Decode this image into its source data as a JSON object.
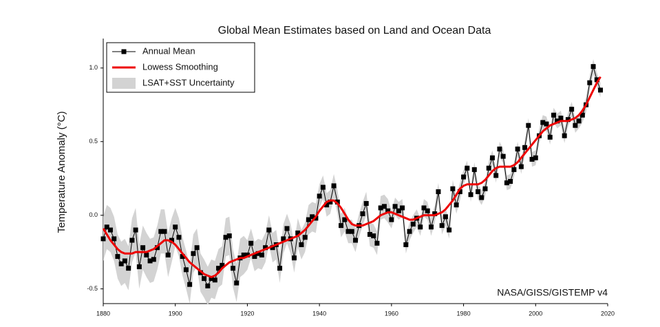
{
  "chart_data": {
    "type": "line",
    "title": "Global Mean Estimates based on Land and Ocean Data",
    "y_label": "Temperature Anomaly (°C)",
    "annotation": "NASA/GISS/GISTEMP v4",
    "x": [
      1880,
      1881,
      1882,
      1883,
      1884,
      1885,
      1886,
      1887,
      1888,
      1889,
      1890,
      1891,
      1892,
      1893,
      1894,
      1895,
      1896,
      1897,
      1898,
      1899,
      1900,
      1901,
      1902,
      1903,
      1904,
      1905,
      1906,
      1907,
      1908,
      1909,
      1910,
      1911,
      1912,
      1913,
      1914,
      1915,
      1916,
      1917,
      1918,
      1919,
      1920,
      1921,
      1922,
      1923,
      1924,
      1925,
      1926,
      1927,
      1928,
      1929,
      1930,
      1931,
      1932,
      1933,
      1934,
      1935,
      1936,
      1937,
      1938,
      1939,
      1940,
      1941,
      1942,
      1943,
      1944,
      1945,
      1946,
      1947,
      1948,
      1949,
      1950,
      1951,
      1952,
      1953,
      1954,
      1955,
      1956,
      1957,
      1958,
      1959,
      1960,
      1961,
      1962,
      1963,
      1964,
      1965,
      1966,
      1967,
      1968,
      1969,
      1970,
      1971,
      1972,
      1973,
      1974,
      1975,
      1976,
      1977,
      1978,
      1979,
      1980,
      1981,
      1982,
      1983,
      1984,
      1985,
      1986,
      1987,
      1988,
      1989,
      1990,
      1991,
      1992,
      1993,
      1994,
      1995,
      1996,
      1997,
      1998,
      1999,
      2000,
      2001,
      2002,
      2003,
      2004,
      2005,
      2006,
      2007,
      2008,
      2009,
      2010,
      2011,
      2012,
      2013,
      2014,
      2015,
      2016,
      2017,
      2018
    ],
    "series": [
      {
        "name": "Annual Mean",
        "color": "#000000",
        "values": [
          -0.16,
          -0.08,
          -0.1,
          -0.16,
          -0.28,
          -0.33,
          -0.31,
          -0.36,
          -0.17,
          -0.1,
          -0.35,
          -0.22,
          -0.27,
          -0.31,
          -0.3,
          -0.22,
          -0.11,
          -0.11,
          -0.27,
          -0.17,
          -0.08,
          -0.15,
          -0.28,
          -0.37,
          -0.47,
          -0.26,
          -0.22,
          -0.39,
          -0.43,
          -0.48,
          -0.43,
          -0.44,
          -0.36,
          -0.34,
          -0.15,
          -0.14,
          -0.36,
          -0.46,
          -0.29,
          -0.27,
          -0.27,
          -0.19,
          -0.28,
          -0.26,
          -0.27,
          -0.22,
          -0.1,
          -0.22,
          -0.2,
          -0.36,
          -0.16,
          -0.09,
          -0.16,
          -0.29,
          -0.12,
          -0.2,
          -0.15,
          -0.03,
          -0.01,
          -0.02,
          0.13,
          0.19,
          0.07,
          0.09,
          0.2,
          0.09,
          -0.07,
          -0.03,
          -0.11,
          -0.11,
          -0.17,
          -0.07,
          0.01,
          0.08,
          -0.13,
          -0.14,
          -0.19,
          0.05,
          0.06,
          0.03,
          -0.03,
          0.06,
          0.03,
          0.05,
          -0.2,
          -0.11,
          -0.06,
          -0.02,
          -0.08,
          0.05,
          0.03,
          -0.08,
          0.01,
          0.16,
          -0.07,
          -0.01,
          -0.1,
          0.18,
          0.07,
          0.16,
          0.26,
          0.32,
          0.14,
          0.31,
          0.16,
          0.12,
          0.18,
          0.32,
          0.39,
          0.27,
          0.45,
          0.4,
          0.22,
          0.23,
          0.31,
          0.45,
          0.33,
          0.46,
          0.61,
          0.38,
          0.39,
          0.54,
          0.63,
          0.62,
          0.53,
          0.68,
          0.64,
          0.66,
          0.54,
          0.65,
          0.72,
          0.61,
          0.64,
          0.68,
          0.75,
          0.9,
          1.01,
          0.92,
          0.85
        ]
      },
      {
        "name": "Lowess Smoothing",
        "color": "#ee0000",
        "values": [
          -0.09,
          -0.13,
          -0.17,
          -0.2,
          -0.23,
          -0.25,
          -0.26,
          -0.26,
          -0.26,
          -0.25,
          -0.25,
          -0.25,
          -0.25,
          -0.24,
          -0.23,
          -0.21,
          -0.19,
          -0.17,
          -0.17,
          -0.18,
          -0.2,
          -0.23,
          -0.26,
          -0.29,
          -0.32,
          -0.34,
          -0.36,
          -0.38,
          -0.4,
          -0.41,
          -0.42,
          -0.41,
          -0.39,
          -0.36,
          -0.34,
          -0.32,
          -0.31,
          -0.3,
          -0.29,
          -0.29,
          -0.28,
          -0.27,
          -0.26,
          -0.25,
          -0.24,
          -0.23,
          -0.22,
          -0.21,
          -0.2,
          -0.19,
          -0.18,
          -0.17,
          -0.16,
          -0.15,
          -0.14,
          -0.12,
          -0.1,
          -0.07,
          -0.04,
          -0.01,
          0.03,
          0.06,
          0.09,
          0.1,
          0.1,
          0.08,
          0.05,
          0.01,
          -0.03,
          -0.06,
          -0.07,
          -0.07,
          -0.07,
          -0.06,
          -0.05,
          -0.04,
          -0.02,
          0.0,
          0.01,
          0.02,
          0.02,
          0.01,
          0.0,
          -0.01,
          -0.02,
          -0.03,
          -0.03,
          -0.02,
          -0.01,
          0.0,
          0.0,
          0.0,
          0.0,
          0.01,
          0.02,
          0.04,
          0.07,
          0.1,
          0.14,
          0.18,
          0.2,
          0.21,
          0.21,
          0.21,
          0.21,
          0.22,
          0.24,
          0.27,
          0.3,
          0.32,
          0.33,
          0.33,
          0.33,
          0.33,
          0.34,
          0.36,
          0.39,
          0.42,
          0.45,
          0.48,
          0.51,
          0.54,
          0.57,
          0.59,
          0.61,
          0.62,
          0.63,
          0.64,
          0.64,
          0.64,
          0.65,
          0.66,
          0.68,
          0.71,
          0.75,
          0.8,
          0.85,
          0.9,
          0.94
        ]
      }
    ],
    "uncertainty": {
      "name": "LSAT+SST Uncertainty",
      "color": "#d3d3d3",
      "values": [
        0.15,
        0.15,
        0.15,
        0.15,
        0.15,
        0.15,
        0.15,
        0.15,
        0.15,
        0.15,
        0.15,
        0.15,
        0.15,
        0.15,
        0.15,
        0.15,
        0.15,
        0.15,
        0.15,
        0.15,
        0.13,
        0.13,
        0.13,
        0.13,
        0.13,
        0.13,
        0.13,
        0.13,
        0.13,
        0.13,
        0.13,
        0.13,
        0.13,
        0.13,
        0.13,
        0.13,
        0.13,
        0.13,
        0.13,
        0.13,
        0.1,
        0.1,
        0.1,
        0.1,
        0.1,
        0.1,
        0.1,
        0.1,
        0.1,
        0.1,
        0.1,
        0.1,
        0.1,
        0.1,
        0.1,
        0.1,
        0.1,
        0.1,
        0.1,
        0.1,
        0.08,
        0.08,
        0.08,
        0.08,
        0.08,
        0.08,
        0.08,
        0.08,
        0.08,
        0.08,
        0.08,
        0.08,
        0.08,
        0.08,
        0.08,
        0.08,
        0.08,
        0.08,
        0.08,
        0.08,
        0.06,
        0.06,
        0.06,
        0.06,
        0.06,
        0.06,
        0.06,
        0.06,
        0.06,
        0.06,
        0.06,
        0.06,
        0.06,
        0.06,
        0.06,
        0.06,
        0.06,
        0.06,
        0.06,
        0.06,
        0.05,
        0.05,
        0.05,
        0.05,
        0.05,
        0.05,
        0.05,
        0.05,
        0.05,
        0.05,
        0.05,
        0.05,
        0.05,
        0.05,
        0.05,
        0.05,
        0.05,
        0.05,
        0.05,
        0.05,
        0.05,
        0.05,
        0.05,
        0.05,
        0.05,
        0.05,
        0.05,
        0.05,
        0.05,
        0.05,
        0.05,
        0.05,
        0.05,
        0.05,
        0.05,
        0.05,
        0.05,
        0.05,
        0.05
      ]
    },
    "xlim": [
      1880,
      2020
    ],
    "xticks": [
      1880,
      1900,
      1920,
      1940,
      1960,
      1980,
      2000,
      2020
    ],
    "ylim": [
      -0.6,
      1.2
    ],
    "yticks": [
      -0.5,
      {
        "value": 0,
        "label": "0.0"
      },
      0.5,
      {
        "value": 1,
        "label": "1.0"
      }
    ],
    "legend": "upper left"
  }
}
